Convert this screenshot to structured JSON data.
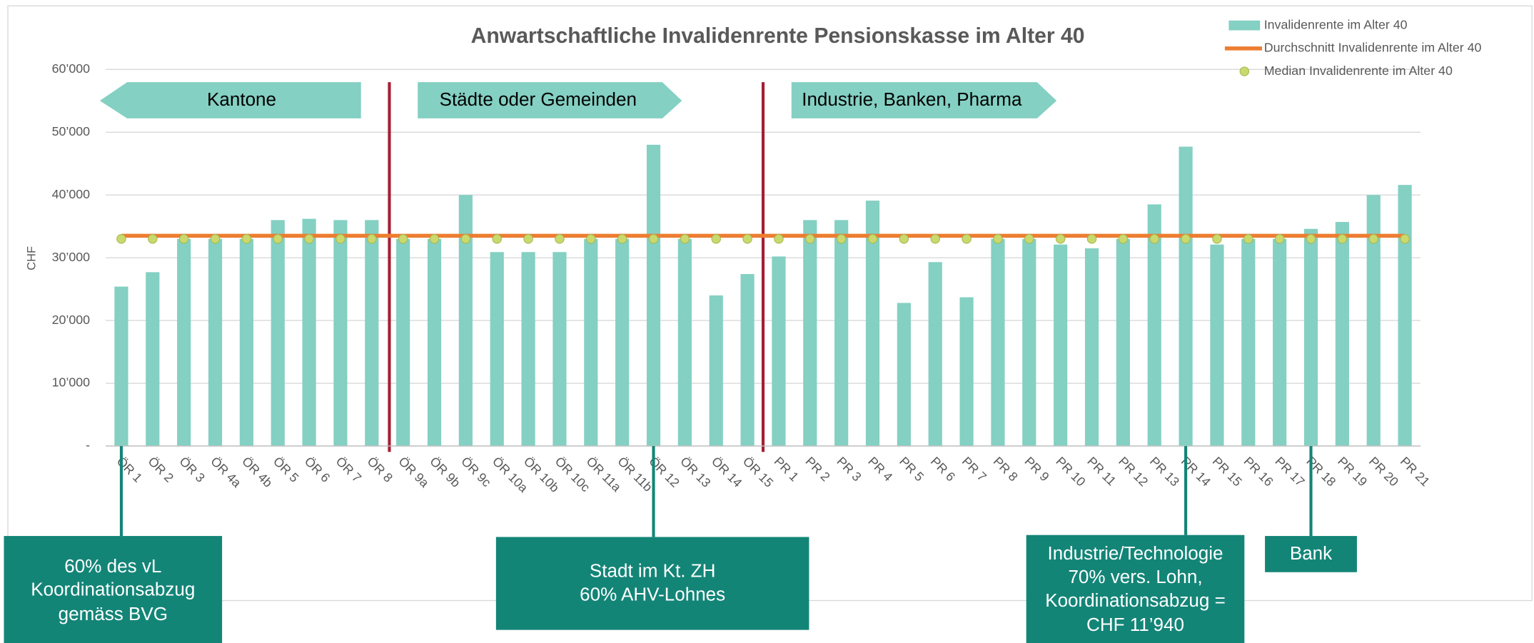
{
  "chart_data": {
    "type": "bar",
    "title": "Anwartschaftliche Invalidenrente Pensionskasse im Alter 40",
    "y_label": "CHF",
    "categories": [
      "ÖR 1",
      "ÖR 2",
      "ÖR 3",
      "ÖR 4a",
      "ÖR 4b",
      "ÖR 5",
      "ÖR 6",
      "ÖR 7",
      "ÖR 8",
      "ÖR 9a",
      "ÖR 9b",
      "ÖR 9c",
      "ÖR 10a",
      "ÖR 10b",
      "ÖR 10c",
      "ÖR 11a",
      "ÖR 11b",
      "ÖR 12",
      "ÖR 13",
      "ÖR 14",
      "ÖR 15",
      "PR 1",
      "PR 2",
      "PR 3",
      "PR 4",
      "PR 5",
      "PR 6",
      "PR 7",
      "PR 8",
      "PR 9",
      "PR 10",
      "PR 11",
      "PR 12",
      "PR 13",
      "PR 14",
      "PR 15",
      "PR 16",
      "PR 17",
      "PR 18",
      "PR 19",
      "PR 20",
      "PR 21"
    ],
    "series": [
      {
        "name": "Invalidenrente im Alter 40",
        "type": "bar",
        "color": "#84d0c3",
        "values": [
          25400,
          27700,
          33000,
          33000,
          33000,
          36000,
          36200,
          36000,
          36000,
          33000,
          33000,
          40000,
          30900,
          30900,
          30900,
          33000,
          33000,
          48000,
          33000,
          24000,
          27400,
          30200,
          36000,
          36000,
          39100,
          22800,
          29300,
          23700,
          33000,
          33000,
          32100,
          31500,
          33000,
          38500,
          47700,
          32100,
          33000,
          33000,
          34600,
          35700,
          40000,
          41600
        ]
      },
      {
        "name": "Durchschnitt Invalidenrente im Alter 40",
        "type": "line",
        "color": "#ed7d31",
        "values": [
          33500,
          33500,
          33500,
          33500,
          33500,
          33500,
          33500,
          33500,
          33500,
          33500,
          33500,
          33500,
          33500,
          33500,
          33500,
          33500,
          33500,
          33500,
          33500,
          33500,
          33500,
          33500,
          33500,
          33500,
          33500,
          33500,
          33500,
          33500,
          33500,
          33500,
          33500,
          33500,
          33500,
          33500,
          33500,
          33500,
          33500,
          33500,
          33500,
          33500,
          33500,
          33500
        ]
      },
      {
        "name": "Median Invalidenrente im Alter 40",
        "type": "scatter",
        "color": "#c9d96e",
        "values": [
          33000,
          33000,
          33000,
          33000,
          33000,
          33000,
          33000,
          33000,
          33000,
          33000,
          33000,
          33000,
          33000,
          33000,
          33000,
          33000,
          33000,
          33000,
          33000,
          33000,
          33000,
          33000,
          33000,
          33000,
          33000,
          33000,
          33000,
          33000,
          33000,
          33000,
          33000,
          33000,
          33000,
          33000,
          33000,
          33000,
          33000,
          33000,
          33000,
          33000,
          33000,
          33000
        ]
      }
    ],
    "ylim": [
      0,
      60000
    ],
    "yticks": [
      {
        "value": 0,
        "label": "-"
      },
      {
        "value": 10000,
        "label": "10’000"
      },
      {
        "value": 20000,
        "label": "20’000"
      },
      {
        "value": 30000,
        "label": "30’000"
      },
      {
        "value": 40000,
        "label": "40’000"
      },
      {
        "value": 50000,
        "label": "50’000"
      },
      {
        "value": 60000,
        "label": "60’000"
      }
    ],
    "grid": true,
    "legend": "top-right",
    "sections": [
      "Kantone",
      "Städte oder Gemeinden",
      "Industrie, Banken, Pharma"
    ],
    "annotations": [
      {
        "lines": [
          "60% des vL",
          "Koordinationsabzug",
          "gemäss BVG"
        ]
      },
      {
        "lines": [
          "Stadt im Kt. ZH",
          "60% AHV-Lohnes"
        ]
      },
      {
        "lines": [
          "Industrie/Technologie",
          "70% vers. Lohn,",
          "Koordinationsabzug =",
          "CHF 11’940"
        ]
      },
      {
        "lines": [
          "Bank"
        ]
      }
    ]
  }
}
